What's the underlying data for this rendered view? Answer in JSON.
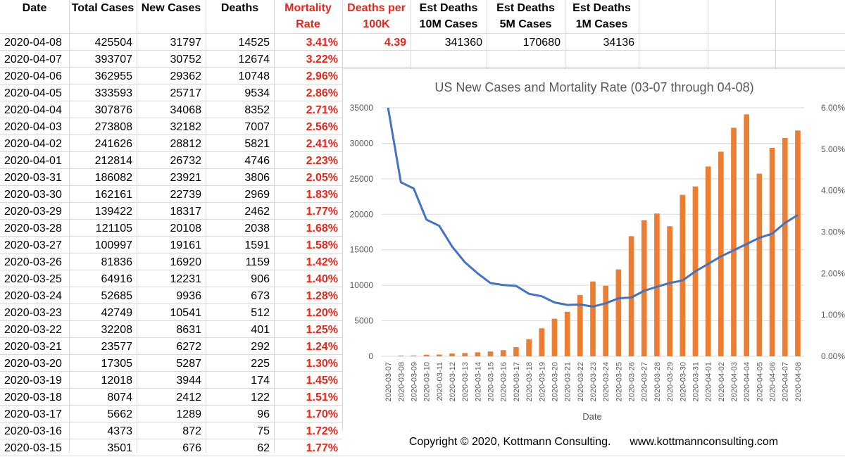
{
  "table": {
    "headers": {
      "date": "Date",
      "total": "Total Cases",
      "new": "New Cases",
      "deaths": "Deaths",
      "mortality_1": "Mortality",
      "mortality_2": "Rate",
      "dpk_1": "Deaths per",
      "dpk_2": "100K",
      "e10_1": "Est Deaths",
      "e10_2": "10M Cases",
      "e5_1": "Est Deaths",
      "e5_2": "5M Cases",
      "e1_1": "Est Deaths",
      "e1_2": "1M Cases"
    },
    "first_row_extra": {
      "deaths_per_100k": "4.39",
      "est_10m": "341360",
      "est_5m": "170680",
      "est_1m": "34136"
    },
    "rows": [
      {
        "date": "2020-04-08",
        "total": "425504",
        "new": "31797",
        "deaths": "14525",
        "rate": "3.41%"
      },
      {
        "date": "2020-04-07",
        "total": "393707",
        "new": "30752",
        "deaths": "12674",
        "rate": "3.22%"
      },
      {
        "date": "2020-04-06",
        "total": "362955",
        "new": "29362",
        "deaths": "10748",
        "rate": "2.96%"
      },
      {
        "date": "2020-04-05",
        "total": "333593",
        "new": "25717",
        "deaths": "9534",
        "rate": "2.86%"
      },
      {
        "date": "2020-04-04",
        "total": "307876",
        "new": "34068",
        "deaths": "8352",
        "rate": "2.71%"
      },
      {
        "date": "2020-04-03",
        "total": "273808",
        "new": "32182",
        "deaths": "7007",
        "rate": "2.56%"
      },
      {
        "date": "2020-04-02",
        "total": "241626",
        "new": "28812",
        "deaths": "5821",
        "rate": "2.41%"
      },
      {
        "date": "2020-04-01",
        "total": "212814",
        "new": "26732",
        "deaths": "4746",
        "rate": "2.23%"
      },
      {
        "date": "2020-03-31",
        "total": "186082",
        "new": "23921",
        "deaths": "3806",
        "rate": "2.05%"
      },
      {
        "date": "2020-03-30",
        "total": "162161",
        "new": "22739",
        "deaths": "2969",
        "rate": "1.83%"
      },
      {
        "date": "2020-03-29",
        "total": "139422",
        "new": "18317",
        "deaths": "2462",
        "rate": "1.77%"
      },
      {
        "date": "2020-03-28",
        "total": "121105",
        "new": "20108",
        "deaths": "2038",
        "rate": "1.68%"
      },
      {
        "date": "2020-03-27",
        "total": "100997",
        "new": "19161",
        "deaths": "1591",
        "rate": "1.58%"
      },
      {
        "date": "2020-03-26",
        "total": "81836",
        "new": "16920",
        "deaths": "1159",
        "rate": "1.42%"
      },
      {
        "date": "2020-03-25",
        "total": "64916",
        "new": "12231",
        "deaths": "906",
        "rate": "1.40%"
      },
      {
        "date": "2020-03-24",
        "total": "52685",
        "new": "9936",
        "deaths": "673",
        "rate": "1.28%"
      },
      {
        "date": "2020-03-23",
        "total": "42749",
        "new": "10541",
        "deaths": "512",
        "rate": "1.20%"
      },
      {
        "date": "2020-03-22",
        "total": "32208",
        "new": "8631",
        "deaths": "401",
        "rate": "1.25%"
      },
      {
        "date": "2020-03-21",
        "total": "23577",
        "new": "6272",
        "deaths": "292",
        "rate": "1.24%"
      },
      {
        "date": "2020-03-20",
        "total": "17305",
        "new": "5287",
        "deaths": "225",
        "rate": "1.30%"
      },
      {
        "date": "2020-03-19",
        "total": "12018",
        "new": "3944",
        "deaths": "174",
        "rate": "1.45%"
      },
      {
        "date": "2020-03-18",
        "total": "8074",
        "new": "2412",
        "deaths": "122",
        "rate": "1.51%"
      },
      {
        "date": "2020-03-17",
        "total": "5662",
        "new": "1289",
        "deaths": "96",
        "rate": "1.70%"
      },
      {
        "date": "2020-03-16",
        "total": "4373",
        "new": "872",
        "deaths": "75",
        "rate": "1.72%"
      },
      {
        "date": "2020-03-15",
        "total": "3501",
        "new": "676",
        "deaths": "62",
        "rate": "1.77%"
      }
    ]
  },
  "chart_data": {
    "type": "bar",
    "title": "US New Cases and Mortality Rate (03-07 through 04-08)",
    "xlabel": "Date",
    "ylabel": "",
    "ylim": [
      0,
      35000
    ],
    "y_ticks": [
      "0",
      "5000",
      "10000",
      "15000",
      "20000",
      "25000",
      "30000",
      "35000"
    ],
    "y2lim": [
      0,
      6
    ],
    "y2_ticks": [
      "0.00%",
      "1.00%",
      "2.00%",
      "3.00%",
      "4.00%",
      "5.00%",
      "6.00%"
    ],
    "grid": true,
    "legend": "none",
    "colors": {
      "bars": "#ed7d31",
      "line": "#4472c4"
    },
    "categories": [
      "2020-03-07",
      "2020-03-08",
      "2020-03-09",
      "2020-03-10",
      "2020-03-11",
      "2020-03-12",
      "2020-03-13",
      "2020-03-14",
      "2020-03-15",
      "2020-03-16",
      "2020-03-17",
      "2020-03-18",
      "2020-03-19",
      "2020-03-20",
      "2020-03-21",
      "2020-03-22",
      "2020-03-23",
      "2020-03-24",
      "2020-03-25",
      "2020-03-26",
      "2020-03-27",
      "2020-03-28",
      "2020-03-29",
      "2020-03-30",
      "2020-03-31",
      "2020-04-01",
      "2020-04-02",
      "2020-04-03",
      "2020-04-04",
      "2020-04-05",
      "2020-04-06",
      "2020-04-07",
      "2020-04-08"
    ],
    "series": [
      {
        "kind": "bar",
        "axis": "left",
        "values": [
          0,
          100,
          110,
          230,
          250,
          390,
          460,
          560,
          676,
          872,
          1289,
          2412,
          3944,
          5287,
          6272,
          8631,
          10541,
          9936,
          12231,
          16920,
          19161,
          20108,
          18317,
          22739,
          23921,
          26732,
          28812,
          32182,
          34068,
          25717,
          29362,
          30752,
          31797
        ]
      },
      {
        "kind": "line",
        "axis": "right",
        "values": [
          6.0,
          4.2,
          4.05,
          3.3,
          3.15,
          2.65,
          2.27,
          2.0,
          1.77,
          1.72,
          1.7,
          1.51,
          1.45,
          1.3,
          1.24,
          1.25,
          1.2,
          1.28,
          1.4,
          1.42,
          1.58,
          1.68,
          1.77,
          1.83,
          2.05,
          2.23,
          2.41,
          2.56,
          2.71,
          2.86,
          2.96,
          3.22,
          3.41
        ]
      }
    ]
  },
  "footer": {
    "copyright": "Copyright © 2020, Kottmann Consulting.",
    "website": "www.kottmannconsulting.com"
  }
}
